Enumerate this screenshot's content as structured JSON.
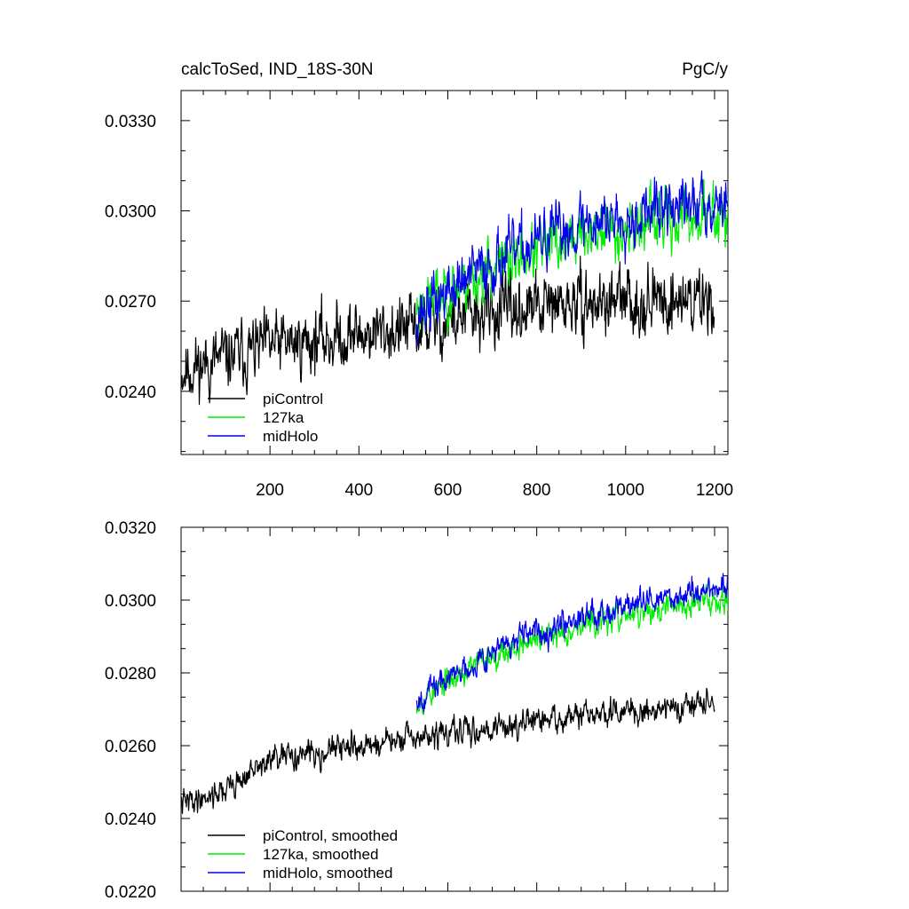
{
  "chart_data": [
    {
      "type": "line",
      "title_left": "calcToSed, IND_18S-30N",
      "title_right": "PgC/y",
      "xlim": [
        0,
        1230
      ],
      "ylim": [
        0.0219,
        0.034
      ],
      "xticks": [
        200,
        400,
        600,
        800,
        1000,
        1200
      ],
      "xtick_labels": [
        "200",
        "400",
        "600",
        "800",
        "1000",
        "1200"
      ],
      "yticks": [
        0.024,
        0.027,
        0.03,
        0.033
      ],
      "ytick_labels": [
        "0.0240",
        "0.0270",
        "0.0300",
        "0.0330"
      ],
      "legend_position": "lower-left",
      "series": [
        {
          "name": "piControl",
          "color": "#000000",
          "x_start": 1,
          "x_end": 1200,
          "trend": [
            [
              1,
              0.0247
            ],
            [
              200,
              0.0255
            ],
            [
              400,
              0.0259
            ],
            [
              530,
              0.0261
            ],
            [
              700,
              0.0266
            ],
            [
              900,
              0.0269
            ],
            [
              1200,
              0.0271
            ]
          ],
          "noise": 0.0009,
          "seed": 11
        },
        {
          "name": "127ka",
          "color": "#00ee00",
          "x_start": 530,
          "x_end": 1230,
          "trend": [
            [
              530,
              0.0268
            ],
            [
              700,
              0.0281
            ],
            [
              900,
              0.0292
            ],
            [
              1230,
              0.03
            ]
          ],
          "noise": 0.0008,
          "seed": 23
        },
        {
          "name": "midHolo",
          "color": "#0000ee",
          "x_start": 530,
          "x_end": 1230,
          "trend": [
            [
              530,
              0.0266
            ],
            [
              700,
              0.0283
            ],
            [
              900,
              0.0296
            ],
            [
              1230,
              0.0304
            ]
          ],
          "noise": 0.0008,
          "seed": 37
        }
      ]
    },
    {
      "type": "line",
      "xlim": [
        0,
        1230
      ],
      "ylim": [
        0.022,
        0.032
      ],
      "xticks": [
        200,
        400,
        600,
        800,
        1000,
        1200
      ],
      "xtick_labels": [],
      "yticks": [
        0.022,
        0.024,
        0.026,
        0.028,
        0.03,
        0.032
      ],
      "ytick_labels": [
        "0.0220",
        "0.0240",
        "0.0260",
        "0.0280",
        "0.0300",
        "0.0320"
      ],
      "legend_position": "lower-left",
      "series": [
        {
          "name": "piControl, smoothed",
          "color": "#000000",
          "x_start": 1,
          "x_end": 1200,
          "trend": [
            [
              1,
              0.0244
            ],
            [
              100,
              0.0248
            ],
            [
              200,
              0.0256
            ],
            [
              350,
              0.0259
            ],
            [
              530,
              0.0262
            ],
            [
              700,
              0.0265
            ],
            [
              900,
              0.0268
            ],
            [
              1200,
              0.0272
            ]
          ],
          "noise": 0.0003,
          "seed": 41
        },
        {
          "name": "127ka, smoothed",
          "color": "#00ee00",
          "x_start": 530,
          "x_end": 1230,
          "trend": [
            [
              530,
              0.0272
            ],
            [
              700,
              0.0285
            ],
            [
              900,
              0.0293
            ],
            [
              1230,
              0.0301
            ]
          ],
          "noise": 0.0003,
          "seed": 53
        },
        {
          "name": "midHolo, smoothed",
          "color": "#0000ee",
          "x_start": 530,
          "x_end": 1230,
          "trend": [
            [
              530,
              0.0273
            ],
            [
              700,
              0.0286
            ],
            [
              900,
              0.0296
            ],
            [
              1230,
              0.0304
            ]
          ],
          "noise": 0.0003,
          "seed": 67
        }
      ]
    }
  ]
}
